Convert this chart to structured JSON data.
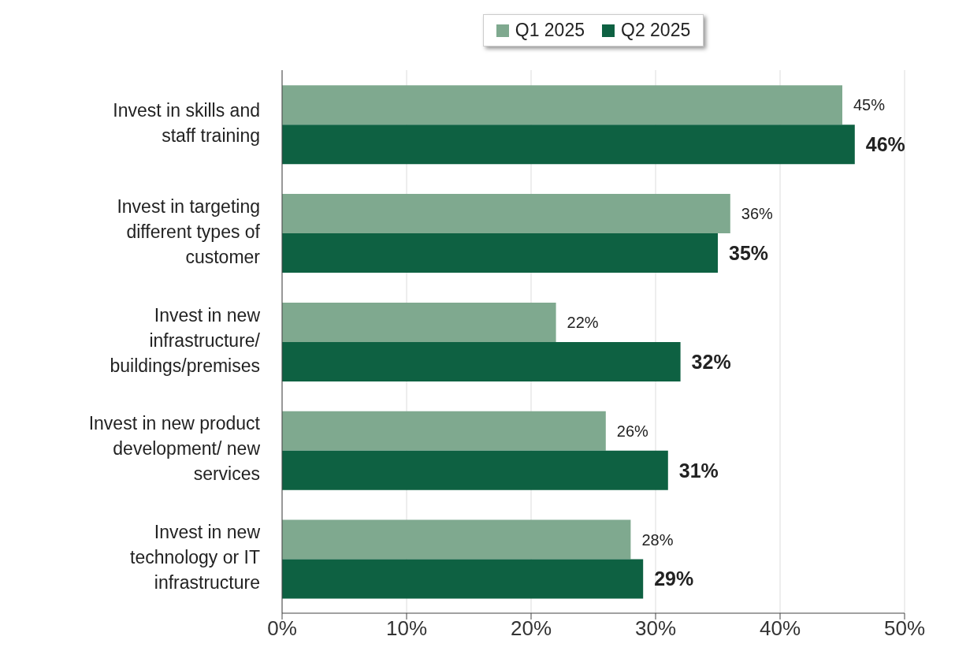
{
  "chart_data": {
    "type": "bar",
    "orientation": "horizontal",
    "categories": [
      "Invest in skills and staff training",
      "Invest in targeting different types of customer",
      "Invest in new infrastructure/ buildings/premises",
      "Invest in new product development/ new services",
      "Invest in new technology or IT infrastructure"
    ],
    "series": [
      {
        "name": "Q1 2025",
        "color": "#7fa98f",
        "values": [
          45,
          36,
          22,
          26,
          28
        ],
        "value_labels": [
          "45%",
          "36%",
          "22%",
          "26%",
          "28%"
        ]
      },
      {
        "name": "Q2 2025",
        "color": "#0e6142",
        "values": [
          46,
          35,
          32,
          31,
          29
        ],
        "value_labels": [
          "46%",
          "35%",
          "32%",
          "31%",
          "29%"
        ]
      }
    ],
    "xlim": [
      0,
      50
    ],
    "xticks": [
      {
        "value": 0,
        "label": "0%"
      },
      {
        "value": 10,
        "label": "10%"
      },
      {
        "value": 20,
        "label": "20%"
      },
      {
        "value": 30,
        "label": "30%"
      },
      {
        "value": 40,
        "label": "40%"
      },
      {
        "value": 50,
        "label": "50%"
      }
    ],
    "grid": "x",
    "legend": "top"
  }
}
